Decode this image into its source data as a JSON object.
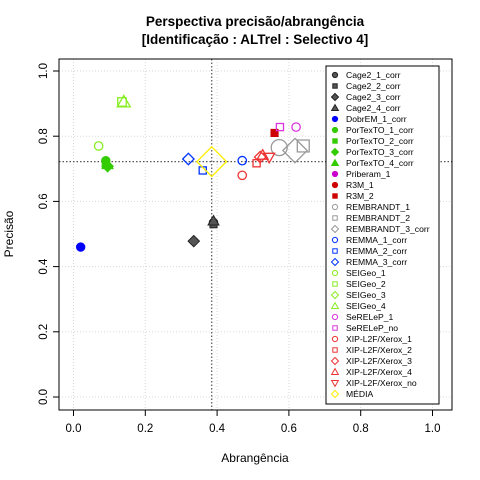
{
  "chart_data": {
    "type": "scatter",
    "title_line1": "Perspectiva precisão/abrangência",
    "title_line2": "[Identificação : ALTrel : Selectivo 4]",
    "xlabel": "Abrangência",
    "ylabel": "Precisão",
    "xlim": [
      0,
      1
    ],
    "ylim": [
      0,
      1
    ],
    "x_ticks": [
      "0.0",
      "0.2",
      "0.4",
      "0.6",
      "0.8",
      "1.0"
    ],
    "y_ticks": [
      "0.0",
      "0.2",
      "0.4",
      "0.6",
      "0.8",
      "1.0"
    ],
    "grid": true,
    "legend_position": "right",
    "reference_lines": {
      "x": 0.385,
      "y": 0.722
    },
    "series": [
      {
        "name": "Cage2_1_corr",
        "shape": "circle",
        "filled": true,
        "color": "#555555",
        "points": [
          [
            0.39,
            0.535
          ]
        ]
      },
      {
        "name": "Cage2_2_corr",
        "shape": "square",
        "filled": true,
        "color": "#555555",
        "points": [
          [
            0.39,
            0.53
          ]
        ]
      },
      {
        "name": "Cage2_3_corr",
        "shape": "diamond",
        "filled": true,
        "color": "#555555",
        "points": [
          [
            0.335,
            0.478
          ]
        ]
      },
      {
        "name": "Cage2_4_corr",
        "shape": "triangle",
        "filled": true,
        "color": "#555555",
        "points": [
          [
            0.39,
            0.54
          ]
        ]
      },
      {
        "name": "DobrEM_1_corr",
        "shape": "circle",
        "filled": true,
        "color": "#0000ff",
        "points": [
          [
            0.02,
            0.46
          ]
        ]
      },
      {
        "name": "PorTexTO_1_corr",
        "shape": "circle",
        "filled": true,
        "color": "#33cc00",
        "points": [
          [
            0.09,
            0.725
          ]
        ]
      },
      {
        "name": "PorTexTO_2_corr",
        "shape": "square",
        "filled": true,
        "color": "#33cc00",
        "points": [
          [
            0.09,
            0.712
          ]
        ]
      },
      {
        "name": "PorTexTO_3_corr",
        "shape": "diamond",
        "filled": true,
        "color": "#33cc00",
        "points": [
          [
            0.095,
            0.708
          ]
        ]
      },
      {
        "name": "PorTexTO_4_corr",
        "shape": "triangle",
        "filled": true,
        "color": "#33cc00",
        "points": [
          [
            0.095,
            0.713
          ]
        ]
      },
      {
        "name": "Priberam_1",
        "shape": "circle",
        "filled": true,
        "color": "#cc00cc",
        "points": []
      },
      {
        "name": "R3M_1",
        "shape": "circle",
        "filled": true,
        "color": "#cc0000",
        "points": []
      },
      {
        "name": "R3M_2",
        "shape": "square",
        "filled": true,
        "color": "#cc0000",
        "points": [
          [
            0.56,
            0.81
          ]
        ]
      },
      {
        "name": "REMBRANDT_1",
        "shape": "circle",
        "filled": false,
        "color": "#999999",
        "points": [
          [
            0.573,
            0.765
          ]
        ]
      },
      {
        "name": "REMBRANDT_2",
        "shape": "square",
        "filled": false,
        "color": "#999999",
        "points": [
          [
            0.64,
            0.77
          ]
        ]
      },
      {
        "name": "REMBRANDT_3_corr",
        "shape": "diamond",
        "filled": false,
        "color": "#999999",
        "points": [
          [
            0.617,
            0.756
          ]
        ]
      },
      {
        "name": "REMMA_1_corr",
        "shape": "circle",
        "filled": false,
        "color": "#0033ff",
        "points": [
          [
            0.47,
            0.725
          ]
        ]
      },
      {
        "name": "REMMA_2_corr",
        "shape": "square",
        "filled": false,
        "color": "#0033ff",
        "points": [
          [
            0.36,
            0.695
          ]
        ]
      },
      {
        "name": "REMMA_3_corr",
        "shape": "diamond",
        "filled": false,
        "color": "#0033ff",
        "points": [
          [
            0.32,
            0.73
          ]
        ]
      },
      {
        "name": "SEIGeo_1",
        "shape": "circle",
        "filled": false,
        "color": "#88ee22",
        "points": [
          [
            0.07,
            0.77
          ]
        ]
      },
      {
        "name": "SEIGeo_2",
        "shape": "square",
        "filled": false,
        "color": "#88ee22",
        "points": [
          [
            0.135,
            0.905
          ]
        ]
      },
      {
        "name": "SEIGeo_3",
        "shape": "diamond",
        "filled": false,
        "color": "#88ee22",
        "points": []
      },
      {
        "name": "SEIGeo_4",
        "shape": "triangle",
        "filled": false,
        "color": "#88ee22",
        "points": [
          [
            0.14,
            0.905
          ]
        ]
      },
      {
        "name": "SeRELeP_1",
        "shape": "circle",
        "filled": false,
        "color": "#dd33dd",
        "points": [
          [
            0.62,
            0.828
          ]
        ]
      },
      {
        "name": "SeRELeP_no",
        "shape": "square",
        "filled": false,
        "color": "#dd33dd",
        "points": [
          [
            0.575,
            0.828
          ]
        ]
      },
      {
        "name": "XIP-L2F/Xerox_1",
        "shape": "circle",
        "filled": false,
        "color": "#ee3333",
        "points": [
          [
            0.47,
            0.68
          ]
        ]
      },
      {
        "name": "XIP-L2F/Xerox_2",
        "shape": "square",
        "filled": false,
        "color": "#ee3333",
        "points": [
          [
            0.51,
            0.717
          ]
        ]
      },
      {
        "name": "XIP-L2F/Xerox_3",
        "shape": "diamond",
        "filled": false,
        "color": "#ee3333",
        "points": [
          [
            0.52,
            0.736
          ]
        ]
      },
      {
        "name": "XIP-L2F/Xerox_4",
        "shape": "triangle",
        "filled": false,
        "color": "#ee3333",
        "points": [
          [
            0.527,
            0.742
          ]
        ]
      },
      {
        "name": "XIP-L2F/Xerox_no",
        "shape": "triangle-down",
        "filled": false,
        "color": "#ee3333",
        "points": [
          [
            0.545,
            0.735
          ]
        ]
      },
      {
        "name": "MÉDIA",
        "shape": "diamond",
        "filled": false,
        "color": "#ffee00",
        "points": [
          [
            0.385,
            0.722
          ]
        ]
      }
    ]
  }
}
